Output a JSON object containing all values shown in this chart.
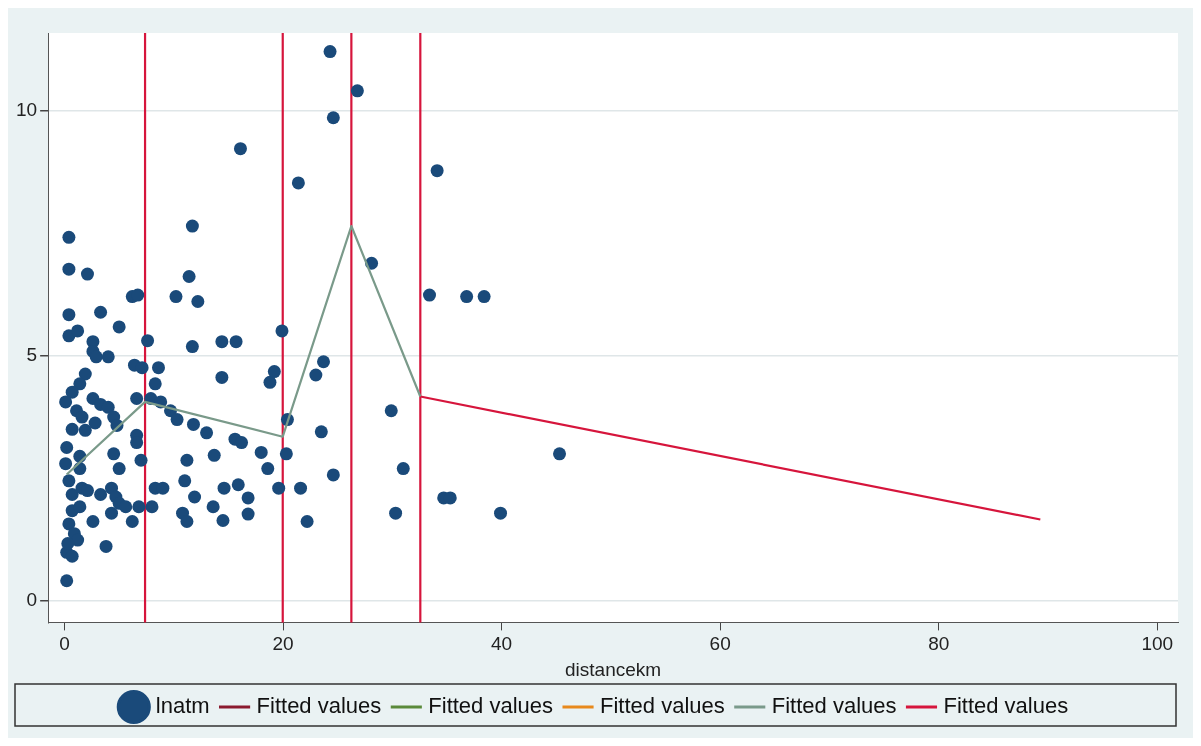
{
  "chart_data": {
    "type": "scatter",
    "xlabel": "distancekm",
    "xlim": [
      -1.5,
      101.9
    ],
    "ylim": [
      -0.45,
      11.58
    ],
    "xticks": [
      0,
      20,
      40,
      60,
      80,
      100
    ],
    "yticks": [
      0,
      5,
      10
    ],
    "grid": "y",
    "legend": "bottom",
    "series": [
      {
        "name": "lnatm",
        "marker": "circle",
        "color": "#1a4a7a",
        "x": [
          0.4,
          0.4,
          2.1,
          0.4,
          3.3,
          0.4,
          1.2,
          5.0,
          6.2,
          6.7,
          7.6,
          2.6,
          2.6,
          2.9,
          4.0,
          6.4,
          7.1,
          8.6,
          1.9,
          1.4,
          0.7,
          0.1,
          1.1,
          1.6,
          2.6,
          3.3,
          4.0,
          4.5,
          4.8,
          0.7,
          1.9,
          2.8,
          6.6,
          7.9,
          0.2,
          1.4,
          4.5,
          6.6,
          6.6,
          7.0,
          0.1,
          1.4,
          5.0,
          0.4,
          0.7,
          1.6,
          2.1,
          3.3,
          4.3,
          4.7,
          5.0,
          5.6,
          6.8,
          0.7,
          1.4,
          4.3,
          2.6,
          6.2,
          0.4,
          0.9,
          3.8,
          0.2,
          0.7,
          0.2,
          1.2,
          0.3,
          8.3,
          8.8,
          8.0,
          8.3,
          9.0,
          9.7,
          10.2,
          10.3,
          11.4,
          11.7,
          12.2,
          11.7,
          11.2,
          11.0,
          10.8,
          11.2,
          11.9,
          11.8,
          13.0,
          13.7,
          13.6,
          14.4,
          15.7,
          14.4,
          14.6,
          14.5,
          15.6,
          16.2,
          16.1,
          15.9,
          16.8,
          16.8,
          18.0,
          18.6,
          18.8,
          19.2,
          19.6,
          19.9,
          20.3,
          20.4,
          21.4,
          21.6,
          22.2,
          23.0,
          23.5,
          23.7,
          24.3,
          24.6,
          24.6,
          26.8,
          28.1,
          29.9,
          30.3,
          31.0,
          33.4,
          34.1,
          34.7,
          35.3,
          36.8,
          38.4,
          39.9,
          45.3
        ],
        "values": [
          7.41,
          6.76,
          6.66,
          5.83,
          5.88,
          5.4,
          5.5,
          5.58,
          6.2,
          6.23,
          5.3,
          5.28,
          5.08,
          4.97,
          4.97,
          4.8,
          4.75,
          4.75,
          4.62,
          4.42,
          4.25,
          4.05,
          3.87,
          3.74,
          4.12,
          4.0,
          3.94,
          3.74,
          3.57,
          3.49,
          3.47,
          3.62,
          4.12,
          4.12,
          3.12,
          2.94,
          2.99,
          3.37,
          3.22,
          2.86,
          2.79,
          2.69,
          2.69,
          2.44,
          2.16,
          2.29,
          2.24,
          2.16,
          2.29,
          2.11,
          1.98,
          1.91,
          1.91,
          1.83,
          1.91,
          1.78,
          1.61,
          1.61,
          1.56,
          1.36,
          1.1,
          0.98,
          0.9,
          0.4,
          1.23,
          1.16,
          4.42,
          4.05,
          1.91,
          2.29,
          2.29,
          3.87,
          6.2,
          3.69,
          6.61,
          7.64,
          6.1,
          5.18,
          2.86,
          2.44,
          1.78,
          1.61,
          2.11,
          3.59,
          3.42,
          2.96,
          1.91,
          5.28,
          5.28,
          4.55,
          2.29,
          1.63,
          3.29,
          3.22,
          9.22,
          2.36,
          2.09,
          1.76,
          3.02,
          2.69,
          4.45,
          4.67,
          2.29,
          5.5,
          2.99,
          3.69,
          8.52,
          2.29,
          1.61,
          4.6,
          3.44,
          4.87,
          11.2,
          9.85,
          2.56,
          10.4,
          6.88,
          3.87,
          1.78,
          2.69,
          6.23,
          8.77,
          2.09,
          2.09,
          6.2,
          6.2,
          1.78,
          2.99
        ]
      },
      {
        "name": "Fitted values",
        "type": "line",
        "marker": "none",
        "color": "#8b1a2e"
      },
      {
        "name": "Fitted values",
        "type": "line",
        "marker": "none",
        "color": "#5a8a3a"
      },
      {
        "name": "Fitted values",
        "type": "line",
        "marker": "none",
        "color": "#e8891b"
      },
      {
        "name": "Fitted values",
        "type": "line",
        "marker": "none",
        "color": "#7a9a8a",
        "x": [
          0.2,
          7.37,
          19.97,
          26.25,
          32.56
        ],
        "values": [
          2.57,
          4.05,
          3.34,
          7.64,
          4.16
        ]
      },
      {
        "name": "Fitted values",
        "type": "line",
        "marker": "none",
        "color": "#d6153c",
        "x": [
          32.56,
          89.3
        ],
        "values": [
          4.16,
          1.65
        ]
      }
    ],
    "ref_lines": [
      {
        "axis": "x",
        "value": 7.37,
        "color": "#d6153c"
      },
      {
        "axis": "x",
        "value": 19.97,
        "color": "#d6153c"
      },
      {
        "axis": "x",
        "value": 26.25,
        "color": "#d6153c"
      },
      {
        "axis": "x",
        "value": 32.56,
        "color": "#d6153c"
      }
    ]
  }
}
